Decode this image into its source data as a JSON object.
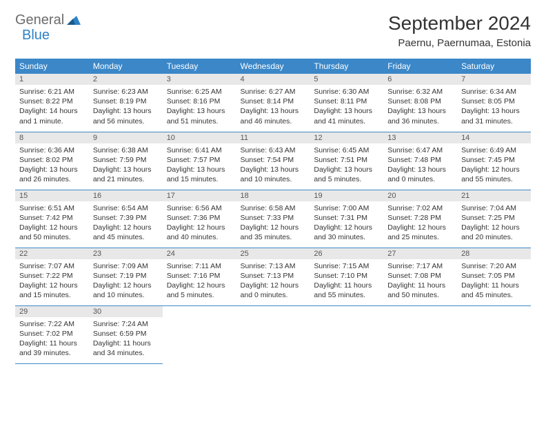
{
  "logo": {
    "text1": "General",
    "text2": "Blue"
  },
  "title": "September 2024",
  "location": "Paernu, Paernumaa, Estonia",
  "colors": {
    "header_bg": "#3b87c8",
    "header_text": "#ffffff",
    "daynum_bg": "#e8e8e8",
    "border": "#3b87c8",
    "logo_gray": "#6b6b6b",
    "logo_blue": "#2d82c6"
  },
  "weekdays": [
    "Sunday",
    "Monday",
    "Tuesday",
    "Wednesday",
    "Thursday",
    "Friday",
    "Saturday"
  ],
  "days": [
    {
      "n": "1",
      "sr": "Sunrise: 6:21 AM",
      "ss": "Sunset: 8:22 PM",
      "dl": "Daylight: 14 hours and 1 minute."
    },
    {
      "n": "2",
      "sr": "Sunrise: 6:23 AM",
      "ss": "Sunset: 8:19 PM",
      "dl": "Daylight: 13 hours and 56 minutes."
    },
    {
      "n": "3",
      "sr": "Sunrise: 6:25 AM",
      "ss": "Sunset: 8:16 PM",
      "dl": "Daylight: 13 hours and 51 minutes."
    },
    {
      "n": "4",
      "sr": "Sunrise: 6:27 AM",
      "ss": "Sunset: 8:14 PM",
      "dl": "Daylight: 13 hours and 46 minutes."
    },
    {
      "n": "5",
      "sr": "Sunrise: 6:30 AM",
      "ss": "Sunset: 8:11 PM",
      "dl": "Daylight: 13 hours and 41 minutes."
    },
    {
      "n": "6",
      "sr": "Sunrise: 6:32 AM",
      "ss": "Sunset: 8:08 PM",
      "dl": "Daylight: 13 hours and 36 minutes."
    },
    {
      "n": "7",
      "sr": "Sunrise: 6:34 AM",
      "ss": "Sunset: 8:05 PM",
      "dl": "Daylight: 13 hours and 31 minutes."
    },
    {
      "n": "8",
      "sr": "Sunrise: 6:36 AM",
      "ss": "Sunset: 8:02 PM",
      "dl": "Daylight: 13 hours and 26 minutes."
    },
    {
      "n": "9",
      "sr": "Sunrise: 6:38 AM",
      "ss": "Sunset: 7:59 PM",
      "dl": "Daylight: 13 hours and 21 minutes."
    },
    {
      "n": "10",
      "sr": "Sunrise: 6:41 AM",
      "ss": "Sunset: 7:57 PM",
      "dl": "Daylight: 13 hours and 15 minutes."
    },
    {
      "n": "11",
      "sr": "Sunrise: 6:43 AM",
      "ss": "Sunset: 7:54 PM",
      "dl": "Daylight: 13 hours and 10 minutes."
    },
    {
      "n": "12",
      "sr": "Sunrise: 6:45 AM",
      "ss": "Sunset: 7:51 PM",
      "dl": "Daylight: 13 hours and 5 minutes."
    },
    {
      "n": "13",
      "sr": "Sunrise: 6:47 AM",
      "ss": "Sunset: 7:48 PM",
      "dl": "Daylight: 13 hours and 0 minutes."
    },
    {
      "n": "14",
      "sr": "Sunrise: 6:49 AM",
      "ss": "Sunset: 7:45 PM",
      "dl": "Daylight: 12 hours and 55 minutes."
    },
    {
      "n": "15",
      "sr": "Sunrise: 6:51 AM",
      "ss": "Sunset: 7:42 PM",
      "dl": "Daylight: 12 hours and 50 minutes."
    },
    {
      "n": "16",
      "sr": "Sunrise: 6:54 AM",
      "ss": "Sunset: 7:39 PM",
      "dl": "Daylight: 12 hours and 45 minutes."
    },
    {
      "n": "17",
      "sr": "Sunrise: 6:56 AM",
      "ss": "Sunset: 7:36 PM",
      "dl": "Daylight: 12 hours and 40 minutes."
    },
    {
      "n": "18",
      "sr": "Sunrise: 6:58 AM",
      "ss": "Sunset: 7:33 PM",
      "dl": "Daylight: 12 hours and 35 minutes."
    },
    {
      "n": "19",
      "sr": "Sunrise: 7:00 AM",
      "ss": "Sunset: 7:31 PM",
      "dl": "Daylight: 12 hours and 30 minutes."
    },
    {
      "n": "20",
      "sr": "Sunrise: 7:02 AM",
      "ss": "Sunset: 7:28 PM",
      "dl": "Daylight: 12 hours and 25 minutes."
    },
    {
      "n": "21",
      "sr": "Sunrise: 7:04 AM",
      "ss": "Sunset: 7:25 PM",
      "dl": "Daylight: 12 hours and 20 minutes."
    },
    {
      "n": "22",
      "sr": "Sunrise: 7:07 AM",
      "ss": "Sunset: 7:22 PM",
      "dl": "Daylight: 12 hours and 15 minutes."
    },
    {
      "n": "23",
      "sr": "Sunrise: 7:09 AM",
      "ss": "Sunset: 7:19 PM",
      "dl": "Daylight: 12 hours and 10 minutes."
    },
    {
      "n": "24",
      "sr": "Sunrise: 7:11 AM",
      "ss": "Sunset: 7:16 PM",
      "dl": "Daylight: 12 hours and 5 minutes."
    },
    {
      "n": "25",
      "sr": "Sunrise: 7:13 AM",
      "ss": "Sunset: 7:13 PM",
      "dl": "Daylight: 12 hours and 0 minutes."
    },
    {
      "n": "26",
      "sr": "Sunrise: 7:15 AM",
      "ss": "Sunset: 7:10 PM",
      "dl": "Daylight: 11 hours and 55 minutes."
    },
    {
      "n": "27",
      "sr": "Sunrise: 7:17 AM",
      "ss": "Sunset: 7:08 PM",
      "dl": "Daylight: 11 hours and 50 minutes."
    },
    {
      "n": "28",
      "sr": "Sunrise: 7:20 AM",
      "ss": "Sunset: 7:05 PM",
      "dl": "Daylight: 11 hours and 45 minutes."
    },
    {
      "n": "29",
      "sr": "Sunrise: 7:22 AM",
      "ss": "Sunset: 7:02 PM",
      "dl": "Daylight: 11 hours and 39 minutes."
    },
    {
      "n": "30",
      "sr": "Sunrise: 7:24 AM",
      "ss": "Sunset: 6:59 PM",
      "dl": "Daylight: 11 hours and 34 minutes."
    }
  ]
}
